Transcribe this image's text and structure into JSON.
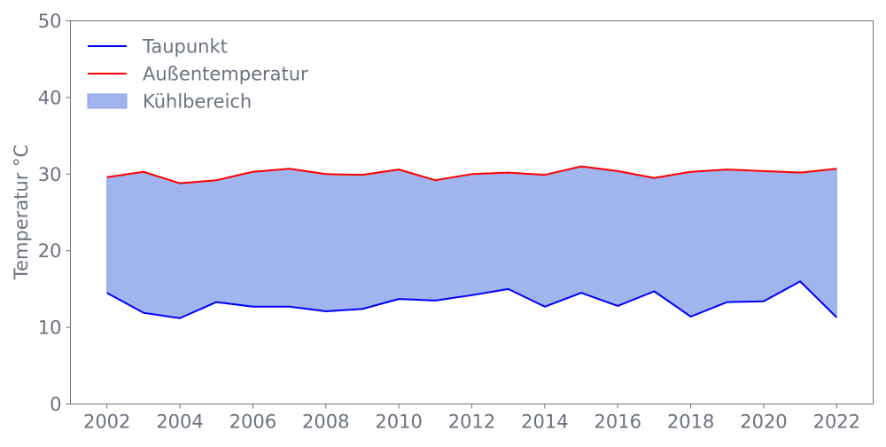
{
  "chart_data": {
    "type": "area",
    "title": "",
    "xlabel": "",
    "ylabel": "Temperatur °C",
    "xlim": [
      2001,
      2023
    ],
    "ylim": [
      0,
      50
    ],
    "xticks": [
      2002,
      2004,
      2006,
      2008,
      2010,
      2012,
      2014,
      2016,
      2018,
      2020,
      2022
    ],
    "yticks": [
      0,
      10,
      20,
      30,
      40,
      50
    ],
    "grid": false,
    "legend_position": "top-left",
    "x": [
      2002,
      2003,
      2004,
      2005,
      2006,
      2007,
      2008,
      2009,
      2010,
      2011,
      2012,
      2013,
      2014,
      2015,
      2016,
      2017,
      2018,
      2019,
      2020,
      2021,
      2022
    ],
    "series": [
      {
        "name": "Taupunkt",
        "kind": "line",
        "color": "#0000ff",
        "values": [
          14.5,
          11.9,
          11.2,
          13.3,
          12.7,
          12.7,
          12.1,
          12.4,
          13.7,
          13.5,
          14.2,
          15.0,
          12.7,
          14.5,
          12.8,
          14.7,
          11.4,
          13.3,
          13.4,
          16.0,
          11.3
        ]
      },
      {
        "name": "Außentemperatur",
        "kind": "line",
        "color": "#ff0000",
        "values": [
          29.6,
          30.3,
          28.8,
          29.2,
          30.3,
          30.7,
          30.0,
          29.9,
          30.6,
          29.2,
          30.0,
          30.2,
          29.9,
          31.0,
          30.4,
          29.5,
          30.3,
          30.6,
          30.4,
          30.2,
          30.7
        ]
      },
      {
        "name": "Kühlbereich",
        "kind": "fill_between",
        "color": "#a0b4ee",
        "between": [
          "Taupunkt",
          "Außentemperatur"
        ]
      }
    ]
  }
}
